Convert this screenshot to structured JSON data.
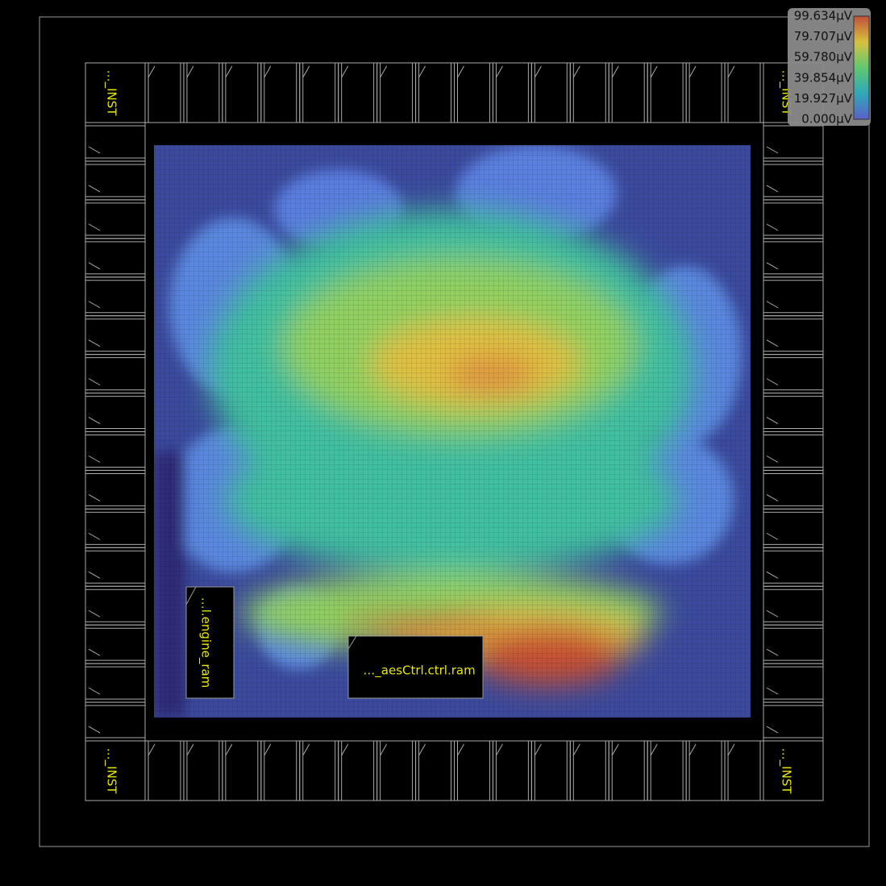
{
  "corner_labels": [
    "…_INST",
    "…_INST",
    "…_INST",
    "…_INST"
  ],
  "macros": {
    "engine_ram": "…l.engine_ram",
    "aes_ram": "…_aesCtrl.ctrl.ram"
  },
  "legend": {
    "labels": [
      "99.634µV",
      "79.707µV",
      "59.780µV",
      "39.854µV",
      "19.927µV",
      "0.000µV"
    ]
  }
}
